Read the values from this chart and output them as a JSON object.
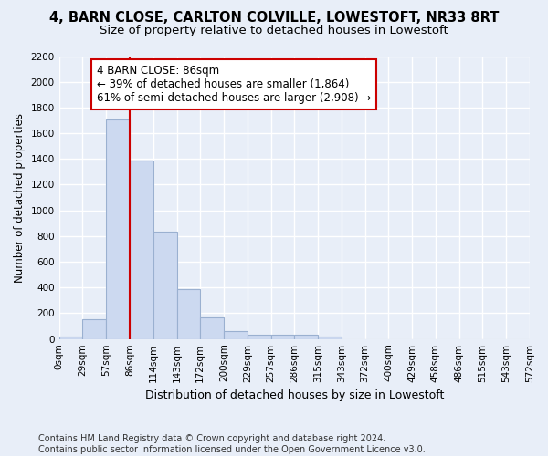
{
  "title": "4, BARN CLOSE, CARLTON COLVILLE, LOWESTOFT, NR33 8RT",
  "subtitle": "Size of property relative to detached houses in Lowestoft",
  "xlabel": "Distribution of detached houses by size in Lowestoft",
  "ylabel": "Number of detached properties",
  "bar_values": [
    20,
    155,
    1710,
    1390,
    835,
    385,
    165,
    65,
    35,
    30,
    30,
    20,
    0,
    0,
    0,
    0,
    0,
    0,
    0,
    0
  ],
  "bar_labels": [
    "0sqm",
    "29sqm",
    "57sqm",
    "86sqm",
    "114sqm",
    "143sqm",
    "172sqm",
    "200sqm",
    "229sqm",
    "257sqm",
    "286sqm",
    "315sqm",
    "343sqm",
    "372sqm",
    "400sqm",
    "429sqm",
    "458sqm",
    "486sqm",
    "515sqm",
    "543sqm",
    "572sqm"
  ],
  "bar_color": "#ccd9f0",
  "bar_edgecolor": "#9ab0d0",
  "bar_linewidth": 0.8,
  "property_bin_index": 3,
  "vline_color": "#cc0000",
  "annotation_line1": "4 BARN CLOSE: 86sqm",
  "annotation_line2": "← 39% of detached houses are smaller (1,864)",
  "annotation_line3": "61% of semi-detached houses are larger (2,908) →",
  "annotation_box_edgecolor": "#cc0000",
  "annotation_box_facecolor": "#ffffff",
  "ylim": [
    0,
    2200
  ],
  "yticks": [
    0,
    200,
    400,
    600,
    800,
    1000,
    1200,
    1400,
    1600,
    1800,
    2000,
    2200
  ],
  "bg_color": "#e8eef8",
  "plot_bg_color": "#e8eef8",
  "grid_color": "#ffffff",
  "footnote_line1": "Contains HM Land Registry data © Crown copyright and database right 2024.",
  "footnote_line2": "Contains public sector information licensed under the Open Government Licence v3.0.",
  "title_fontsize": 10.5,
  "subtitle_fontsize": 9.5,
  "xlabel_fontsize": 9,
  "ylabel_fontsize": 8.5,
  "tick_fontsize": 7.5,
  "annotation_fontsize": 8.5,
  "footnote_fontsize": 7
}
